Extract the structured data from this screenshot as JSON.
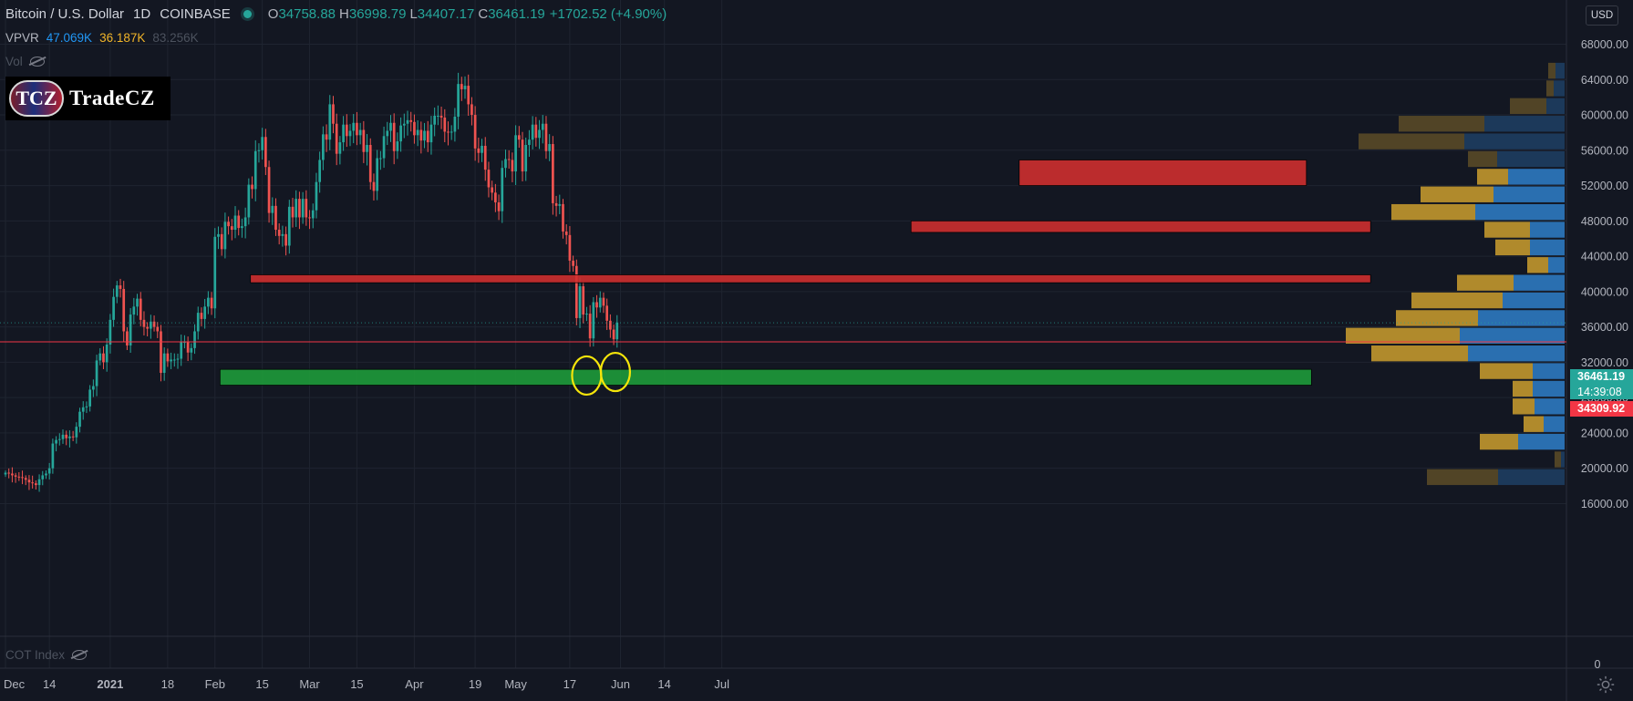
{
  "header": {
    "symbol": "Bitcoin / U.S. Dollar",
    "interval": "1D",
    "exchange": "COINBASE",
    "open_key": "O",
    "open": "34758.88",
    "high_key": "H",
    "high": "36998.79",
    "low_key": "L",
    "low": "34407.17",
    "close_key": "C",
    "close": "36461.19",
    "change": "+1702.52 (+4.90%)"
  },
  "indicators": {
    "vpvr_label": "VPVR",
    "vpvr_up": "47.069K",
    "vpvr_down": "36.187K",
    "vpvr_total": "83.256K",
    "vol_label": "Vol",
    "cot_label": "COT Index"
  },
  "logo": {
    "badge": "TCZ",
    "name": "TradeCZ"
  },
  "currency": "USD",
  "price_tags": {
    "last_price": "36461.19",
    "countdown": "14:39:08",
    "line_price": "34309.92"
  },
  "colors": {
    "background": "#131722",
    "up": "#26a69a",
    "down": "#ef5350",
    "resistance_zone": "#d32f2f",
    "support_zone": "#1e9e3a",
    "vp_up": "#2a6fb0",
    "vp_down": "#b08a2c",
    "highlight_circle": "#f5e50a"
  },
  "chart_data": {
    "type": "candlestick",
    "y_unit": "USD",
    "ylim": [
      14000,
      68000
    ],
    "y_ticks": [
      "68000.00",
      "64000.00",
      "60000.00",
      "56000.00",
      "52000.00",
      "48000.00",
      "44000.00",
      "40000.00",
      "36000.00",
      "32000.00",
      "28000.00",
      "24000.00",
      "20000.00",
      "16000.00"
    ],
    "lower_pane_ticks": [
      "0"
    ],
    "x_ticks": [
      "Dec",
      "14",
      "2021",
      "18",
      "Feb",
      "15",
      "Mar",
      "15",
      "Apr",
      "19",
      "May",
      "17",
      "Jun",
      "14",
      "Jul"
    ],
    "x_range": [
      "2020-12-01",
      "2021-07-05"
    ],
    "closes": [
      19500,
      19400,
      19200,
      19050,
      19000,
      18900,
      18700,
      18400,
      18300,
      18100,
      18750,
      19200,
      19400,
      20000,
      22800,
      23200,
      23300,
      23800,
      23400,
      23600,
      23500,
      24700,
      26400,
      26900,
      27000,
      28900,
      29300,
      32200,
      33000,
      32000,
      34000,
      36800,
      39400,
      40700,
      40300,
      35500,
      33900,
      37400,
      38300,
      39200,
      36800,
      36000,
      35800,
      36600,
      36000,
      35500,
      30800,
      33000,
      32100,
      32300,
      32300,
      32400,
      34300,
      34300,
      33100,
      33600,
      35500,
      37600,
      36900,
      38300,
      39300,
      38100,
      46200,
      46500,
      44800,
      47900,
      47400,
      47000,
      48600,
      47200,
      47400,
      48400,
      52100,
      51600,
      55900,
      56000,
      57500,
      54100,
      48900,
      49700,
      47000,
      46300,
      46500,
      45200,
      49600,
      48400,
      50500,
      48400,
      50500,
      48400,
      48300,
      49200,
      52400,
      54900,
      57800,
      57200,
      61200,
      59000,
      55600,
      56900,
      58900,
      57600,
      58200,
      59100,
      57700,
      58300,
      55800,
      56600,
      52400,
      51400,
      55100,
      55100,
      57600,
      58200,
      59100,
      55900,
      57000,
      58800,
      59000,
      59400,
      59200,
      57700,
      58300,
      57100,
      58200,
      56900,
      58900,
      59900,
      59900,
      59700,
      58100,
      58000,
      58100,
      59800,
      63500,
      62900,
      63300,
      61200,
      60000,
      56200,
      55700,
      56500,
      53800,
      51800,
      51200,
      50100,
      49100,
      54000,
      55000,
      54900,
      53600,
      57700,
      57200,
      53600,
      56600,
      57200,
      58900,
      57400,
      58300,
      59000,
      55900,
      56700,
      50000,
      49700,
      49900,
      46800,
      46400,
      43500,
      42900,
      37000,
      40600,
      37400,
      37500,
      34700,
      38800,
      38200,
      39300,
      38400,
      36700,
      35700,
      34600,
      36500
    ],
    "volume_profile": [
      {
        "price": 64000,
        "up": 1.0,
        "down": 0.8
      },
      {
        "price": 62000,
        "up": 1.2,
        "down": 0.8
      },
      {
        "price": 60000,
        "up": 2.0,
        "down": 4.0
      },
      {
        "price": 58000,
        "up": 8.8,
        "down": 9.4
      },
      {
        "price": 56000,
        "up": 11.0,
        "down": 11.6
      },
      {
        "price": 54000,
        "up": 7.4,
        "down": 3.2
      },
      {
        "price": 52000,
        "up": 6.2,
        "down": 3.4
      },
      {
        "price": 50000,
        "up": 7.8,
        "down": 8.0
      },
      {
        "price": 48000,
        "up": 9.8,
        "down": 9.2
      },
      {
        "price": 46000,
        "up": 3.8,
        "down": 5.0
      },
      {
        "price": 44000,
        "up": 3.8,
        "down": 3.8
      },
      {
        "price": 42000,
        "up": 1.8,
        "down": 2.3
      },
      {
        "price": 40000,
        "up": 5.6,
        "down": 6.2
      },
      {
        "price": 38000,
        "up": 6.8,
        "down": 10.0
      },
      {
        "price": 36000,
        "up": 9.5,
        "down": 9.0
      },
      {
        "price": 34000,
        "up": 11.5,
        "down": 12.5
      },
      {
        "price": 32000,
        "up": 10.6,
        "down": 10.6
      },
      {
        "price": 30000,
        "up": 3.5,
        "down": 5.8
      },
      {
        "price": 28000,
        "up": 3.5,
        "down": 2.2
      },
      {
        "price": 26000,
        "up": 3.3,
        "down": 2.4
      },
      {
        "price": 24000,
        "up": 2.3,
        "down": 2.2
      },
      {
        "price": 22000,
        "up": 5.1,
        "down": 4.2
      },
      {
        "price": 20000,
        "up": 0.4,
        "down": 0.7
      },
      {
        "price": 18000,
        "up": 7.3,
        "down": 7.8
      }
    ],
    "last_price": 36461.19,
    "price_line": 34309.92
  }
}
